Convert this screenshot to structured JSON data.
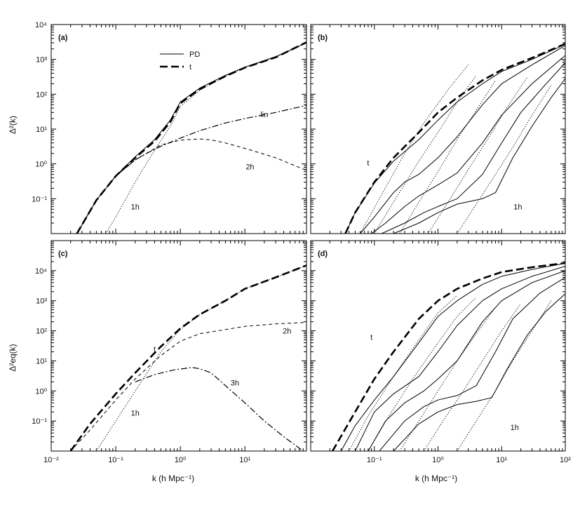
{
  "figure": {
    "top_ylabel": "Δ²(k)",
    "bottom_ylabel": "Δ²eq(k)",
    "xlabel": "k (h Mpc⁻¹)"
  },
  "chart_data": [
    {
      "type": "line",
      "panel": "a",
      "xscale": "log",
      "yscale": "log",
      "xlim": [
        0.01,
        90
      ],
      "ylim": [
        0.01,
        10000
      ],
      "yticks": [
        "10⁻¹",
        "10⁰",
        "10¹",
        "10²",
        "10³",
        "10⁴"
      ],
      "legend": {
        "placement": "top-center",
        "entries": [
          "PD",
          "t"
        ]
      },
      "series": [
        {
          "name": "PD",
          "style": "solid",
          "x": [
            0.025,
            0.05,
            0.1,
            0.2,
            0.4,
            0.7,
            1.0,
            2,
            5,
            10,
            30,
            90
          ],
          "y": [
            0.01,
            0.09,
            0.45,
            1.6,
            5,
            18,
            60,
            150,
            350,
            600,
            1200,
            3000
          ]
        },
        {
          "name": "t",
          "style": "thick-dash",
          "x": [
            0.025,
            0.05,
            0.1,
            0.2,
            0.4,
            0.7,
            1.0,
            2,
            5,
            10,
            30,
            90
          ],
          "y": [
            0.01,
            0.09,
            0.45,
            1.5,
            4.5,
            16,
            55,
            140,
            330,
            580,
            1150,
            3100
          ]
        },
        {
          "label": "lin",
          "style": "dash-dot",
          "x": [
            0.025,
            0.05,
            0.1,
            0.2,
            0.3,
            0.5,
            1,
            2,
            5,
            10,
            30,
            90
          ],
          "y": [
            0.01,
            0.09,
            0.45,
            1.3,
            2.0,
            3.2,
            5.5,
            9,
            15,
            20,
            30,
            48
          ]
        },
        {
          "label": "2h",
          "style": "dash",
          "x": [
            0.025,
            0.05,
            0.1,
            0.2,
            0.5,
            1,
            2,
            3,
            5,
            10,
            30,
            90
          ],
          "y": [
            0.01,
            0.09,
            0.45,
            1.3,
            3.5,
            4.8,
            5.2,
            4.9,
            4.0,
            2.8,
            1.5,
            0.65
          ]
        },
        {
          "label": "1h",
          "style": "dotted",
          "x": [
            0.07,
            0.1,
            0.2,
            0.4,
            0.7,
            1,
            2,
            5,
            10,
            30,
            90
          ],
          "y": [
            0.01,
            0.03,
            0.3,
            2.5,
            12,
            45,
            130,
            330,
            580,
            1150,
            3000
          ]
        }
      ],
      "annotations": [
        {
          "text": "lin",
          "at": [
            20,
            22
          ]
        },
        {
          "text": "2h",
          "at": [
            12,
            0.7
          ]
        },
        {
          "text": "1h",
          "at": [
            0.2,
            0.05
          ]
        }
      ]
    },
    {
      "type": "line",
      "panel": "b",
      "xscale": "log",
      "yscale": "log",
      "xlim": [
        0.01,
        100
      ],
      "ylim": [
        0.01,
        10000
      ],
      "series": [
        {
          "label": "t",
          "style": "thick-dash",
          "x": [
            0.035,
            0.05,
            0.1,
            0.2,
            0.5,
            1,
            2,
            5,
            10,
            30,
            100
          ],
          "y": [
            0.01,
            0.04,
            0.3,
            1.5,
            8,
            30,
            80,
            250,
            500,
            1100,
            2800
          ]
        },
        {
          "style": "solid",
          "x": [
            0.035,
            0.05,
            0.1,
            0.2,
            0.5,
            1,
            2,
            5,
            10,
            30,
            100
          ],
          "y": [
            0.01,
            0.04,
            0.28,
            1.2,
            5,
            18,
            60,
            200,
            450,
            1000,
            2700
          ]
        },
        {
          "style": "solid",
          "x": [
            0.06,
            0.1,
            0.2,
            0.3,
            0.5,
            1,
            2,
            5,
            10,
            30,
            100
          ],
          "y": [
            0.01,
            0.03,
            0.15,
            0.3,
            0.5,
            1.5,
            6,
            50,
            200,
            700,
            2500
          ]
        },
        {
          "style": "solid",
          "x": [
            0.09,
            0.15,
            0.3,
            0.5,
            1,
            2,
            5,
            10,
            30,
            100
          ],
          "y": [
            0.01,
            0.02,
            0.06,
            0.12,
            0.25,
            0.55,
            4,
            25,
            200,
            1300
          ]
        },
        {
          "style": "solid",
          "x": [
            0.13,
            0.3,
            0.6,
            1,
            2,
            5,
            10,
            20,
            50,
            100
          ],
          "y": [
            0.01,
            0.02,
            0.04,
            0.06,
            0.1,
            0.5,
            4,
            30,
            200,
            800
          ]
        },
        {
          "style": "solid",
          "x": [
            0.2,
            0.5,
            1,
            2,
            5,
            8,
            15,
            30,
            60,
            100
          ],
          "y": [
            0.01,
            0.02,
            0.04,
            0.07,
            0.1,
            0.15,
            1.5,
            12,
            80,
            280
          ]
        },
        {
          "label": "1h",
          "style": "dotted",
          "x": [
            0.06,
            0.12,
            0.3,
            0.6,
            1.5,
            3
          ],
          "y": [
            0.01,
            0.1,
            2,
            15,
            150,
            700
          ]
        },
        {
          "label": "1h",
          "style": "dotted",
          "x": [
            0.1,
            0.2,
            0.5,
            1,
            2,
            4
          ],
          "y": [
            0.01,
            0.08,
            1.2,
            8,
            60,
            350
          ]
        },
        {
          "label": "1h",
          "style": "dotted",
          "x": [
            0.25,
            0.5,
            1,
            2,
            4,
            8
          ],
          "y": [
            0.01,
            0.08,
            0.6,
            5,
            35,
            250
          ]
        },
        {
          "label": "1h",
          "style": "dotted",
          "x": [
            0.7,
            1.5,
            3,
            6,
            12,
            25
          ],
          "y": [
            0.01,
            0.09,
            0.7,
            5,
            40,
            300
          ]
        },
        {
          "label": "1h",
          "style": "dotted",
          "x": [
            2,
            4,
            8,
            15,
            30,
            60
          ],
          "y": [
            0.01,
            0.07,
            0.5,
            3,
            25,
            180
          ]
        }
      ],
      "annotations": [
        {
          "text": "t",
          "at": [
            0.08,
            0.9
          ]
        },
        {
          "text": "1h",
          "at": [
            18,
            0.05
          ]
        }
      ]
    },
    {
      "type": "line",
      "panel": "c",
      "xscale": "log",
      "yscale": "log",
      "xlim": [
        0.01,
        90
      ],
      "ylim": [
        0.01,
        100000
      ],
      "xticks": [
        "10⁻²",
        "10⁻¹",
        "10⁰",
        "10¹"
      ],
      "yticks": [
        "10⁻¹",
        "10⁰",
        "10¹",
        "10²",
        "10³",
        "10⁴"
      ],
      "series": [
        {
          "label": "t",
          "style": "thick-dash",
          "x": [
            0.02,
            0.04,
            0.1,
            0.2,
            0.5,
            1,
            2,
            5,
            10,
            30,
            90
          ],
          "y": [
            0.01,
            0.08,
            0.8,
            4,
            30,
            120,
            350,
            1000,
            2500,
            6000,
            15000
          ]
        },
        {
          "label": "2h",
          "style": "dash",
          "x": [
            0.02,
            0.04,
            0.1,
            0.2,
            0.5,
            1,
            2,
            5,
            10,
            30,
            90
          ],
          "y": [
            0.01,
            0.05,
            0.5,
            2.5,
            15,
            45,
            80,
            110,
            140,
            170,
            190
          ]
        },
        {
          "label": "3h",
          "style": "dash-dot",
          "x": [
            0.2,
            0.4,
            0.8,
            1.5,
            2,
            3,
            5,
            10,
            20,
            40,
            80
          ],
          "y": [
            2,
            3.5,
            5,
            6,
            5.5,
            4,
            1.5,
            0.4,
            0.1,
            0.03,
            0.01
          ]
        },
        {
          "label": "1h",
          "style": "dotted",
          "x": [
            0.05,
            0.1,
            0.2,
            0.5,
            1,
            2,
            5,
            10,
            30,
            90
          ],
          "y": [
            0.01,
            0.1,
            1,
            20,
            110,
            340,
            1000,
            2500,
            6000,
            15000
          ]
        }
      ],
      "annotations": [
        {
          "text": "t",
          "at": [
            0.4,
            20
          ]
        },
        {
          "text": "2h",
          "at": [
            45,
            80
          ]
        },
        {
          "text": "3h",
          "at": [
            7,
            1.5
          ]
        },
        {
          "text": "1h",
          "at": [
            0.2,
            0.15
          ]
        }
      ]
    },
    {
      "type": "line",
      "panel": "d",
      "xscale": "log",
      "yscale": "log",
      "xlim": [
        0.01,
        100
      ],
      "ylim": [
        0.01,
        100000
      ],
      "xticks": [
        "10⁻¹",
        "10⁰",
        "10¹",
        "10²"
      ],
      "series": [
        {
          "label": "t",
          "style": "thick-dash",
          "x": [
            0.022,
            0.05,
            0.1,
            0.2,
            0.5,
            1,
            2,
            5,
            10,
            30,
            100
          ],
          "y": [
            0.01,
            0.2,
            2.5,
            20,
            250,
            1000,
            2500,
            5500,
            9000,
            13000,
            18000
          ]
        },
        {
          "style": "solid",
          "x": [
            0.03,
            0.05,
            0.1,
            0.2,
            0.5,
            1,
            2,
            5,
            10,
            30,
            100
          ],
          "y": [
            0.01,
            0.07,
            0.5,
            3,
            40,
            300,
            1000,
            3500,
            6500,
            11000,
            17500
          ]
        },
        {
          "style": "solid",
          "x": [
            0.05,
            0.1,
            0.2,
            0.5,
            1,
            2,
            5,
            10,
            30,
            100
          ],
          "y": [
            0.01,
            0.2,
            0.8,
            3,
            20,
            150,
            1000,
            2500,
            6500,
            14000
          ]
        },
        {
          "style": "solid",
          "x": [
            0.08,
            0.15,
            0.3,
            0.6,
            1,
            2,
            5,
            10,
            30,
            100
          ],
          "y": [
            0.01,
            0.1,
            0.4,
            1,
            2.5,
            10,
            200,
            1000,
            4000,
            10000
          ]
        },
        {
          "style": "solid",
          "x": [
            0.12,
            0.3,
            0.6,
            1,
            2,
            4,
            8,
            15,
            40,
            100
          ],
          "y": [
            0.01,
            0.1,
            0.3,
            0.5,
            0.7,
            1.5,
            20,
            250,
            1800,
            6000
          ]
        },
        {
          "style": "solid",
          "x": [
            0.2,
            0.5,
            1,
            2,
            4,
            7,
            12,
            25,
            50,
            100
          ],
          "y": [
            0.01,
            0.08,
            0.2,
            0.35,
            0.45,
            0.6,
            5,
            70,
            450,
            1700
          ]
        },
        {
          "label": "1h",
          "style": "dotted",
          "x": [
            0.04,
            0.08,
            0.2,
            0.5,
            1,
            2
          ],
          "y": [
            0.01,
            0.15,
            3,
            50,
            400,
            1500
          ]
        },
        {
          "label": "1h",
          "style": "dotted",
          "x": [
            0.08,
            0.16,
            0.4,
            1,
            2,
            4
          ],
          "y": [
            0.01,
            0.12,
            2.5,
            40,
            300,
            1300
          ]
        },
        {
          "label": "1h",
          "style": "dotted",
          "x": [
            0.25,
            0.5,
            1,
            2,
            4,
            8
          ],
          "y": [
            0.01,
            0.1,
            1,
            10,
            80,
            600
          ]
        },
        {
          "label": "1h",
          "style": "dotted",
          "x": [
            0.6,
            1.2,
            2.5,
            5,
            10,
            20
          ],
          "y": [
            0.01,
            0.1,
            1,
            10,
            100,
            800
          ]
        },
        {
          "label": "1h",
          "style": "dotted",
          "x": [
            2,
            4,
            8,
            15,
            30,
            60
          ],
          "y": [
            0.01,
            0.1,
            1,
            10,
            100,
            1000
          ]
        }
      ],
      "annotations": [
        {
          "text": "t",
          "at": [
            0.09,
            50
          ]
        },
        {
          "text": "1h",
          "at": [
            16,
            0.05
          ]
        }
      ]
    }
  ]
}
